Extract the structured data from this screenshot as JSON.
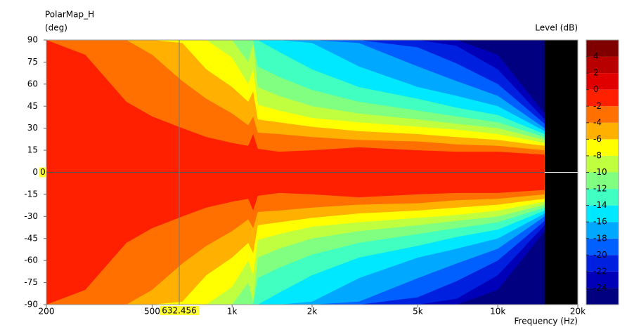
{
  "chart_data": {
    "type": "contour",
    "title": "PolarMap_H",
    "y_label": "(deg)",
    "x_label": "Frequency  (Hz)",
    "colorbar_label": "Level  (dB)",
    "xscale": "log",
    "xlim": [
      200,
      20000
    ],
    "ylim": [
      -90,
      90
    ],
    "xticks": [
      200,
      500,
      {
        "value": 1000,
        "label": "1k"
      },
      {
        "value": 2000,
        "label": "2k"
      },
      {
        "value": 5000,
        "label": "5k"
      },
      {
        "value": 10000,
        "label": "10k"
      },
      {
        "value": 20000,
        "label": "20k"
      }
    ],
    "yticks": [
      -90,
      -75,
      -60,
      -45,
      -30,
      -15,
      0,
      15,
      30,
      45,
      60,
      75,
      90
    ],
    "x": [
      200,
      280,
      400,
      500,
      650,
      800,
      1000,
      1150,
      1200,
      1250,
      1500,
      2000,
      3000,
      5000,
      7000,
      10000,
      15000
    ],
    "contours": [
      {
        "level": -24,
        "angles": [
          90,
          90,
          90,
          90,
          90,
          90,
          90,
          90,
          90,
          90,
          90,
          90,
          90,
          90,
          90,
          80,
          40
        ]
      },
      {
        "level": -22,
        "angles": [
          90,
          90,
          90,
          90,
          90,
          90,
          90,
          90,
          90,
          90,
          90,
          90,
          90,
          90,
          86,
          70,
          36
        ]
      },
      {
        "level": -20,
        "angles": [
          90,
          90,
          90,
          90,
          90,
          90,
          90,
          90,
          90,
          90,
          90,
          90,
          90,
          85,
          74,
          60,
          33
        ]
      },
      {
        "level": -18,
        "angles": [
          90,
          90,
          90,
          90,
          90,
          90,
          90,
          90,
          90,
          90,
          90,
          90,
          88,
          72,
          62,
          52,
          30
        ]
      },
      {
        "level": -16,
        "angles": [
          90,
          90,
          90,
          90,
          90,
          90,
          90,
          90,
          90,
          90,
          90,
          88,
          72,
          58,
          52,
          45,
          28
        ]
      },
      {
        "level": -14,
        "angles": [
          90,
          90,
          90,
          90,
          90,
          90,
          90,
          90,
          90,
          90,
          82,
          70,
          58,
          50,
          44,
          39,
          26
        ]
      },
      {
        "level": -12,
        "angles": [
          90,
          90,
          90,
          90,
          90,
          90,
          90,
          90,
          90,
          72,
          65,
          56,
          48,
          42,
          38,
          34,
          24
        ]
      },
      {
        "level": -10,
        "angles": [
          90,
          90,
          90,
          90,
          90,
          90,
          90,
          75,
          88,
          58,
          52,
          45,
          40,
          36,
          33,
          30,
          22
        ]
      },
      {
        "level": -8,
        "angles": [
          90,
          90,
          90,
          90,
          90,
          90,
          78,
          60,
          70,
          46,
          42,
          37,
          34,
          31,
          29,
          26,
          20
        ]
      },
      {
        "level": -6,
        "angles": [
          90,
          90,
          90,
          90,
          88,
          70,
          58,
          48,
          55,
          36,
          34,
          31,
          28,
          26,
          24,
          22,
          18
        ]
      },
      {
        "level": -4,
        "angles": [
          90,
          90,
          90,
          80,
          62,
          50,
          40,
          32,
          38,
          27,
          26,
          24,
          22,
          21,
          19,
          18,
          15
        ]
      },
      {
        "level": -2,
        "angles": [
          90,
          80,
          48,
          38,
          30,
          24,
          20,
          18,
          26,
          16,
          14,
          15,
          17,
          15,
          14,
          14,
          12
        ]
      }
    ],
    "colorbar": {
      "lim": [
        -26,
        6
      ],
      "ticks": [
        -24,
        -22,
        -20,
        -18,
        -16,
        -14,
        -12,
        -10,
        -8,
        -6,
        -4,
        -2,
        0,
        2,
        4
      ],
      "colors": [
        "#000080",
        "#0000b8",
        "#0020e0",
        "#0060ff",
        "#00a8ff",
        "#00e8ff",
        "#40ffc0",
        "#80ff80",
        "#c0ff40",
        "#ffff00",
        "#ffb000",
        "#ff7000",
        "#ff2000",
        "#e00000",
        "#b80000",
        "#800000"
      ]
    },
    "cursor": {
      "x": 632.456,
      "y": 0
    }
  }
}
